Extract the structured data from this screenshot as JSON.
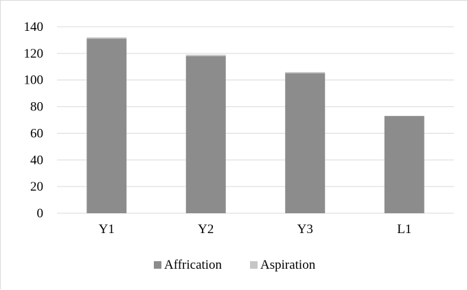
{
  "chart_data": {
    "type": "bar",
    "stacked": true,
    "categories": [
      "Y1",
      "Y2",
      "Y3",
      "L1"
    ],
    "series": [
      {
        "name": "Affrication",
        "values": [
          131,
          118,
          105,
          73
        ],
        "color": "#8c8c8c"
      },
      {
        "name": "Aspiration",
        "values": [
          1,
          1,
          1,
          0
        ],
        "color": "#c6c6c6"
      }
    ],
    "ylim": [
      0,
      140
    ],
    "yticks": [
      0,
      20,
      40,
      60,
      80,
      100,
      120,
      140
    ],
    "grid": true,
    "legend_position": "bottom",
    "gridline_color": "#d9d9d9"
  }
}
